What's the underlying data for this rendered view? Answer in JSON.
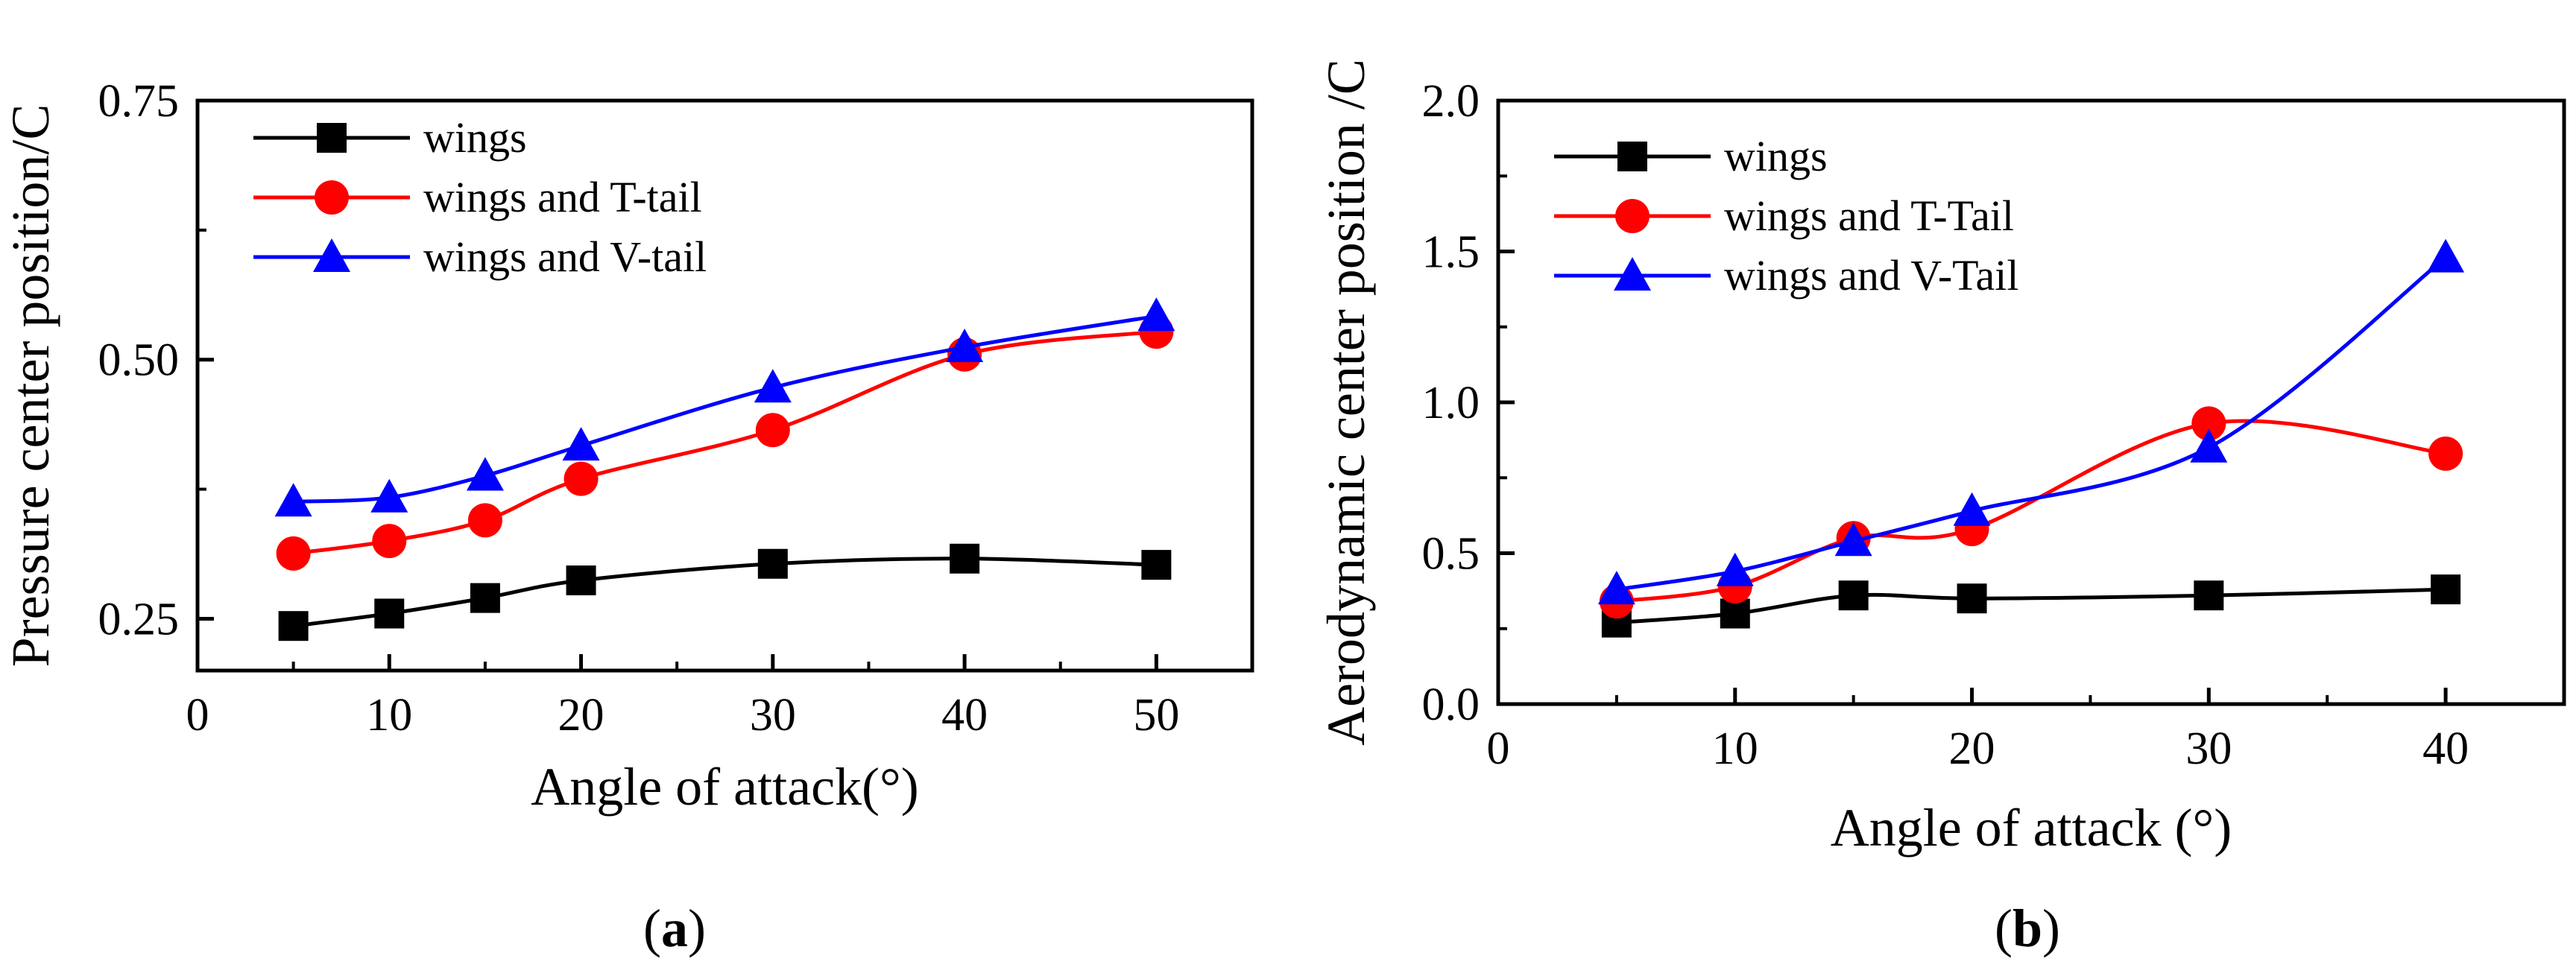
{
  "chart_data": [
    {
      "type": "line",
      "panel_label": "a",
      "xlabel": "Angle of attack(°)",
      "ylabel": "Pressure center position/C",
      "xlim": [
        0,
        55
      ],
      "ylim": [
        0.2,
        0.75
      ],
      "xticks": [
        0,
        10,
        20,
        30,
        40,
        50
      ],
      "yticks": [
        0.25,
        0.5,
        0.75
      ],
      "ytick_labels": [
        "0.25",
        "0.50",
        "0.75"
      ],
      "legend_position": "top-left",
      "series": [
        {
          "name": "wings",
          "marker": "square",
          "color": "#000000",
          "x": [
            5,
            10,
            15,
            20,
            30,
            40,
            50
          ],
          "y": [
            0.243,
            0.255,
            0.27,
            0.287,
            0.303,
            0.308,
            0.302
          ]
        },
        {
          "name": "wings and T-tail",
          "marker": "circle",
          "color": "#ff0000",
          "x": [
            5,
            10,
            15,
            20,
            30,
            40,
            50
          ],
          "y": [
            0.313,
            0.325,
            0.345,
            0.385,
            0.432,
            0.505,
            0.527
          ]
        },
        {
          "name": "wings and V-tail",
          "marker": "triangle",
          "color": "#0000ff",
          "x": [
            5,
            10,
            15,
            20,
            30,
            40,
            50
          ],
          "y": [
            0.363,
            0.367,
            0.388,
            0.417,
            0.473,
            0.512,
            0.542
          ]
        }
      ]
    },
    {
      "type": "line",
      "panel_label": "b",
      "xlabel": "Angle of attack (°)",
      "ylabel": "Aerodynamic center position /C",
      "xlim": [
        0,
        45
      ],
      "ylim": [
        0.0,
        2.0
      ],
      "xticks": [
        0,
        10,
        20,
        30,
        40
      ],
      "yticks": [
        0.0,
        0.5,
        1.0,
        1.5,
        2.0
      ],
      "ytick_labels": [
        "0.0",
        "0.5",
        "1.0",
        "1.5",
        "2.0"
      ],
      "legend_position": "top-left",
      "series": [
        {
          "name": "wings",
          "marker": "square",
          "color": "#000000",
          "x": [
            5,
            10,
            15,
            20,
            30,
            40
          ],
          "y": [
            0.27,
            0.3,
            0.36,
            0.35,
            0.36,
            0.38
          ]
        },
        {
          "name": "wings and T-Tail",
          "marker": "circle",
          "color": "#ff0000",
          "x": [
            5,
            10,
            15,
            20,
            30,
            40
          ],
          "y": [
            0.34,
            0.39,
            0.55,
            0.58,
            0.93,
            0.83
          ]
        },
        {
          "name": "wings and V-Tail",
          "marker": "triangle",
          "color": "#0000ff",
          "x": [
            5,
            10,
            15,
            20,
            30,
            40
          ],
          "y": [
            0.38,
            0.44,
            0.54,
            0.64,
            0.85,
            1.48
          ]
        }
      ]
    }
  ]
}
